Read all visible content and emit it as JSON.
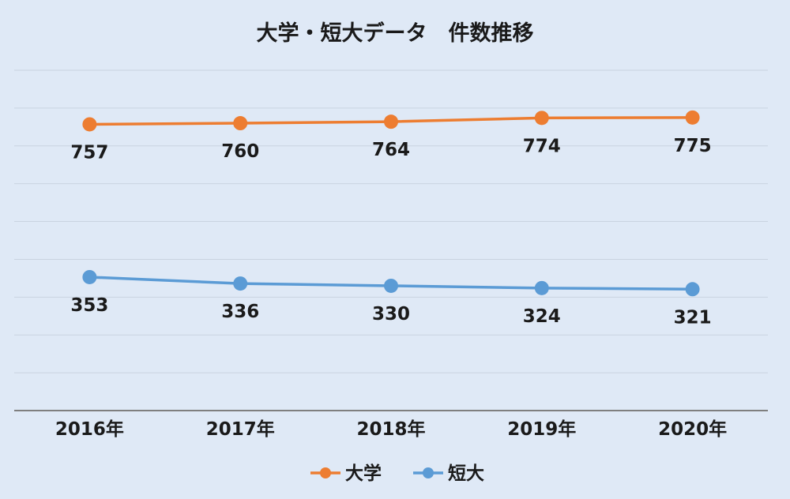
{
  "chart_data": {
    "type": "line",
    "title": "大学・短大データ　件数推移",
    "xlabel": "",
    "ylabel": "",
    "categories": [
      "2016年",
      "2017年",
      "2018年",
      "2019年",
      "2020年"
    ],
    "ylim": [
      0,
      900
    ],
    "grid": true,
    "legend": "bottom",
    "series": [
      {
        "name": "大学",
        "color": "#ed7d31",
        "values": [
          757,
          760,
          764,
          774,
          775
        ]
      },
      {
        "name": "短大",
        "color": "#5b9bd5",
        "values": [
          353,
          336,
          330,
          324,
          321
        ]
      }
    ]
  }
}
